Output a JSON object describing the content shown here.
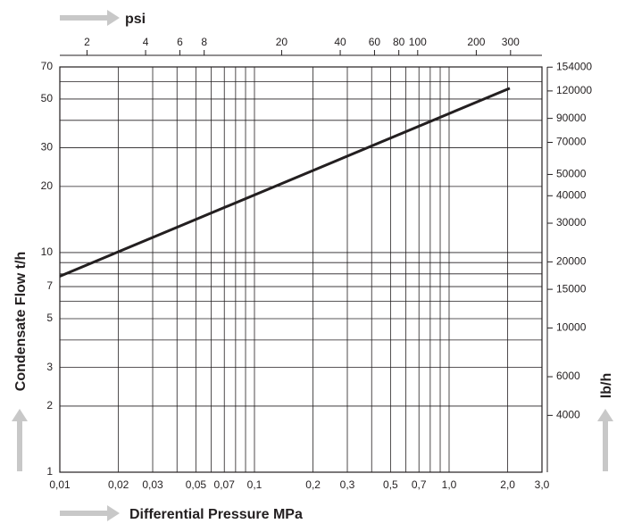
{
  "chart_data": {
    "type": "line",
    "x_label": "Differential Pressure MPa",
    "y_label": "Condensate Flow t/h",
    "x2_label": "psi",
    "y2_label": "lb/h",
    "xscale": "log",
    "yscale": "log",
    "xlim": [
      0.01,
      3
    ],
    "ylim": [
      1,
      70
    ],
    "xticks": [
      {
        "value": 0.01,
        "label": "0,01"
      },
      {
        "value": 0.02,
        "label": "0,02"
      },
      {
        "value": 0.03,
        "label": "0,03"
      },
      {
        "value": 0.05,
        "label": "0,05"
      },
      {
        "value": 0.07,
        "label": "0,07"
      },
      {
        "value": 0.1,
        "label": "0,1"
      },
      {
        "value": 0.2,
        "label": "0,2"
      },
      {
        "value": 0.3,
        "label": "0,3"
      },
      {
        "value": 0.5,
        "label": "0,5"
      },
      {
        "value": 0.7,
        "label": "0,7"
      },
      {
        "value": 1,
        "label": "1,0"
      },
      {
        "value": 2,
        "label": "2,0"
      },
      {
        "value": 3,
        "label": "3,0"
      }
    ],
    "x_minor_grid": [
      0.04,
      0.06,
      0.08,
      0.09,
      0.4,
      0.6,
      0.8,
      0.9
    ],
    "yticks": [
      1,
      2,
      3,
      5,
      7,
      10,
      20,
      30,
      50,
      70
    ],
    "y_minor_grid": [
      4,
      6,
      8,
      9,
      40,
      60
    ],
    "x2lim": [
      1.45,
      435.1
    ],
    "x2ticks": [
      2,
      4,
      6,
      8,
      20,
      40,
      60,
      80,
      100,
      200,
      300
    ],
    "y2lim": [
      2205,
      154323
    ],
    "y2ticks": [
      154000,
      120000,
      90000,
      70000,
      50000,
      40000,
      30000,
      20000,
      15000,
      10000,
      6000,
      4000
    ],
    "grid": true,
    "series": [
      {
        "color": "#231f20",
        "x": [
          0.01,
          2.05
        ],
        "values": [
          7.8,
          56
        ]
      }
    ]
  }
}
